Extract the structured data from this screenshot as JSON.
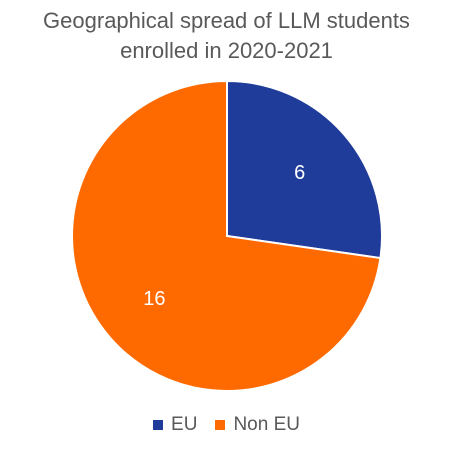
{
  "chart_data": {
    "type": "pie",
    "title_lines": [
      "Geographical spread of LLM students",
      "enrolled in 2020-2021"
    ],
    "categories": [
      "EU",
      "Non EU"
    ],
    "values": [
      6,
      16
    ],
    "colors": [
      "#1f3c9a",
      "#ff6a00"
    ],
    "data_labels": [
      "6",
      "16"
    ],
    "legend_position": "bottom"
  }
}
